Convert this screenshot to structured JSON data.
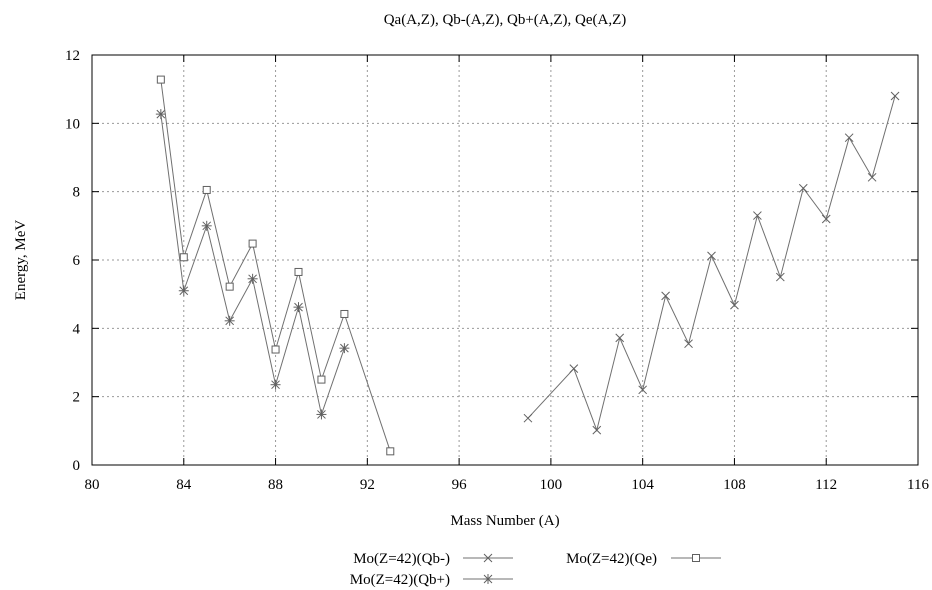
{
  "chart_data": {
    "type": "line",
    "title": "Qa(A,Z), Qb-(A,Z), Qb+(A,Z), Qe(A,Z)",
    "xlabel": "Mass Number (A)",
    "ylabel": "Energy, MeV",
    "xlim": [
      80,
      116
    ],
    "ylim": [
      0,
      12
    ],
    "xticks": [
      80,
      84,
      88,
      92,
      96,
      100,
      104,
      108,
      112,
      116
    ],
    "yticks": [
      0,
      2,
      4,
      6,
      8,
      10,
      12
    ],
    "grid": true,
    "legend_position": "bottom",
    "series": [
      {
        "name": "Mo(Z=42)(Qb-)",
        "marker": "x",
        "color": "#606060",
        "x": [
          99,
          101,
          102,
          103,
          104,
          105,
          106,
          107,
          108,
          109,
          110,
          111,
          112,
          113,
          114,
          115
        ],
        "y": [
          1.37,
          2.82,
          1.02,
          3.72,
          2.2,
          4.95,
          3.55,
          6.12,
          4.68,
          7.3,
          5.5,
          8.1,
          7.2,
          9.58,
          8.42,
          10.8
        ]
      },
      {
        "name": "Mo(Z=42)(Qb+)",
        "marker": "asterisk",
        "color": "#606060",
        "x": [
          83,
          84,
          85,
          86,
          87,
          88,
          89,
          90,
          91
        ],
        "y": [
          10.27,
          5.1,
          7.0,
          4.22,
          5.45,
          2.35,
          4.62,
          1.48,
          3.42
        ]
      },
      {
        "name": "Mo(Z=42)(Qe)",
        "marker": "square",
        "color": "#606060",
        "x": [
          83,
          84,
          85,
          86,
          87,
          88,
          89,
          90,
          91,
          93
        ],
        "y": [
          11.28,
          6.08,
          8.05,
          5.22,
          6.48,
          3.38,
          5.65,
          2.5,
          4.42,
          0.4
        ]
      }
    ]
  }
}
